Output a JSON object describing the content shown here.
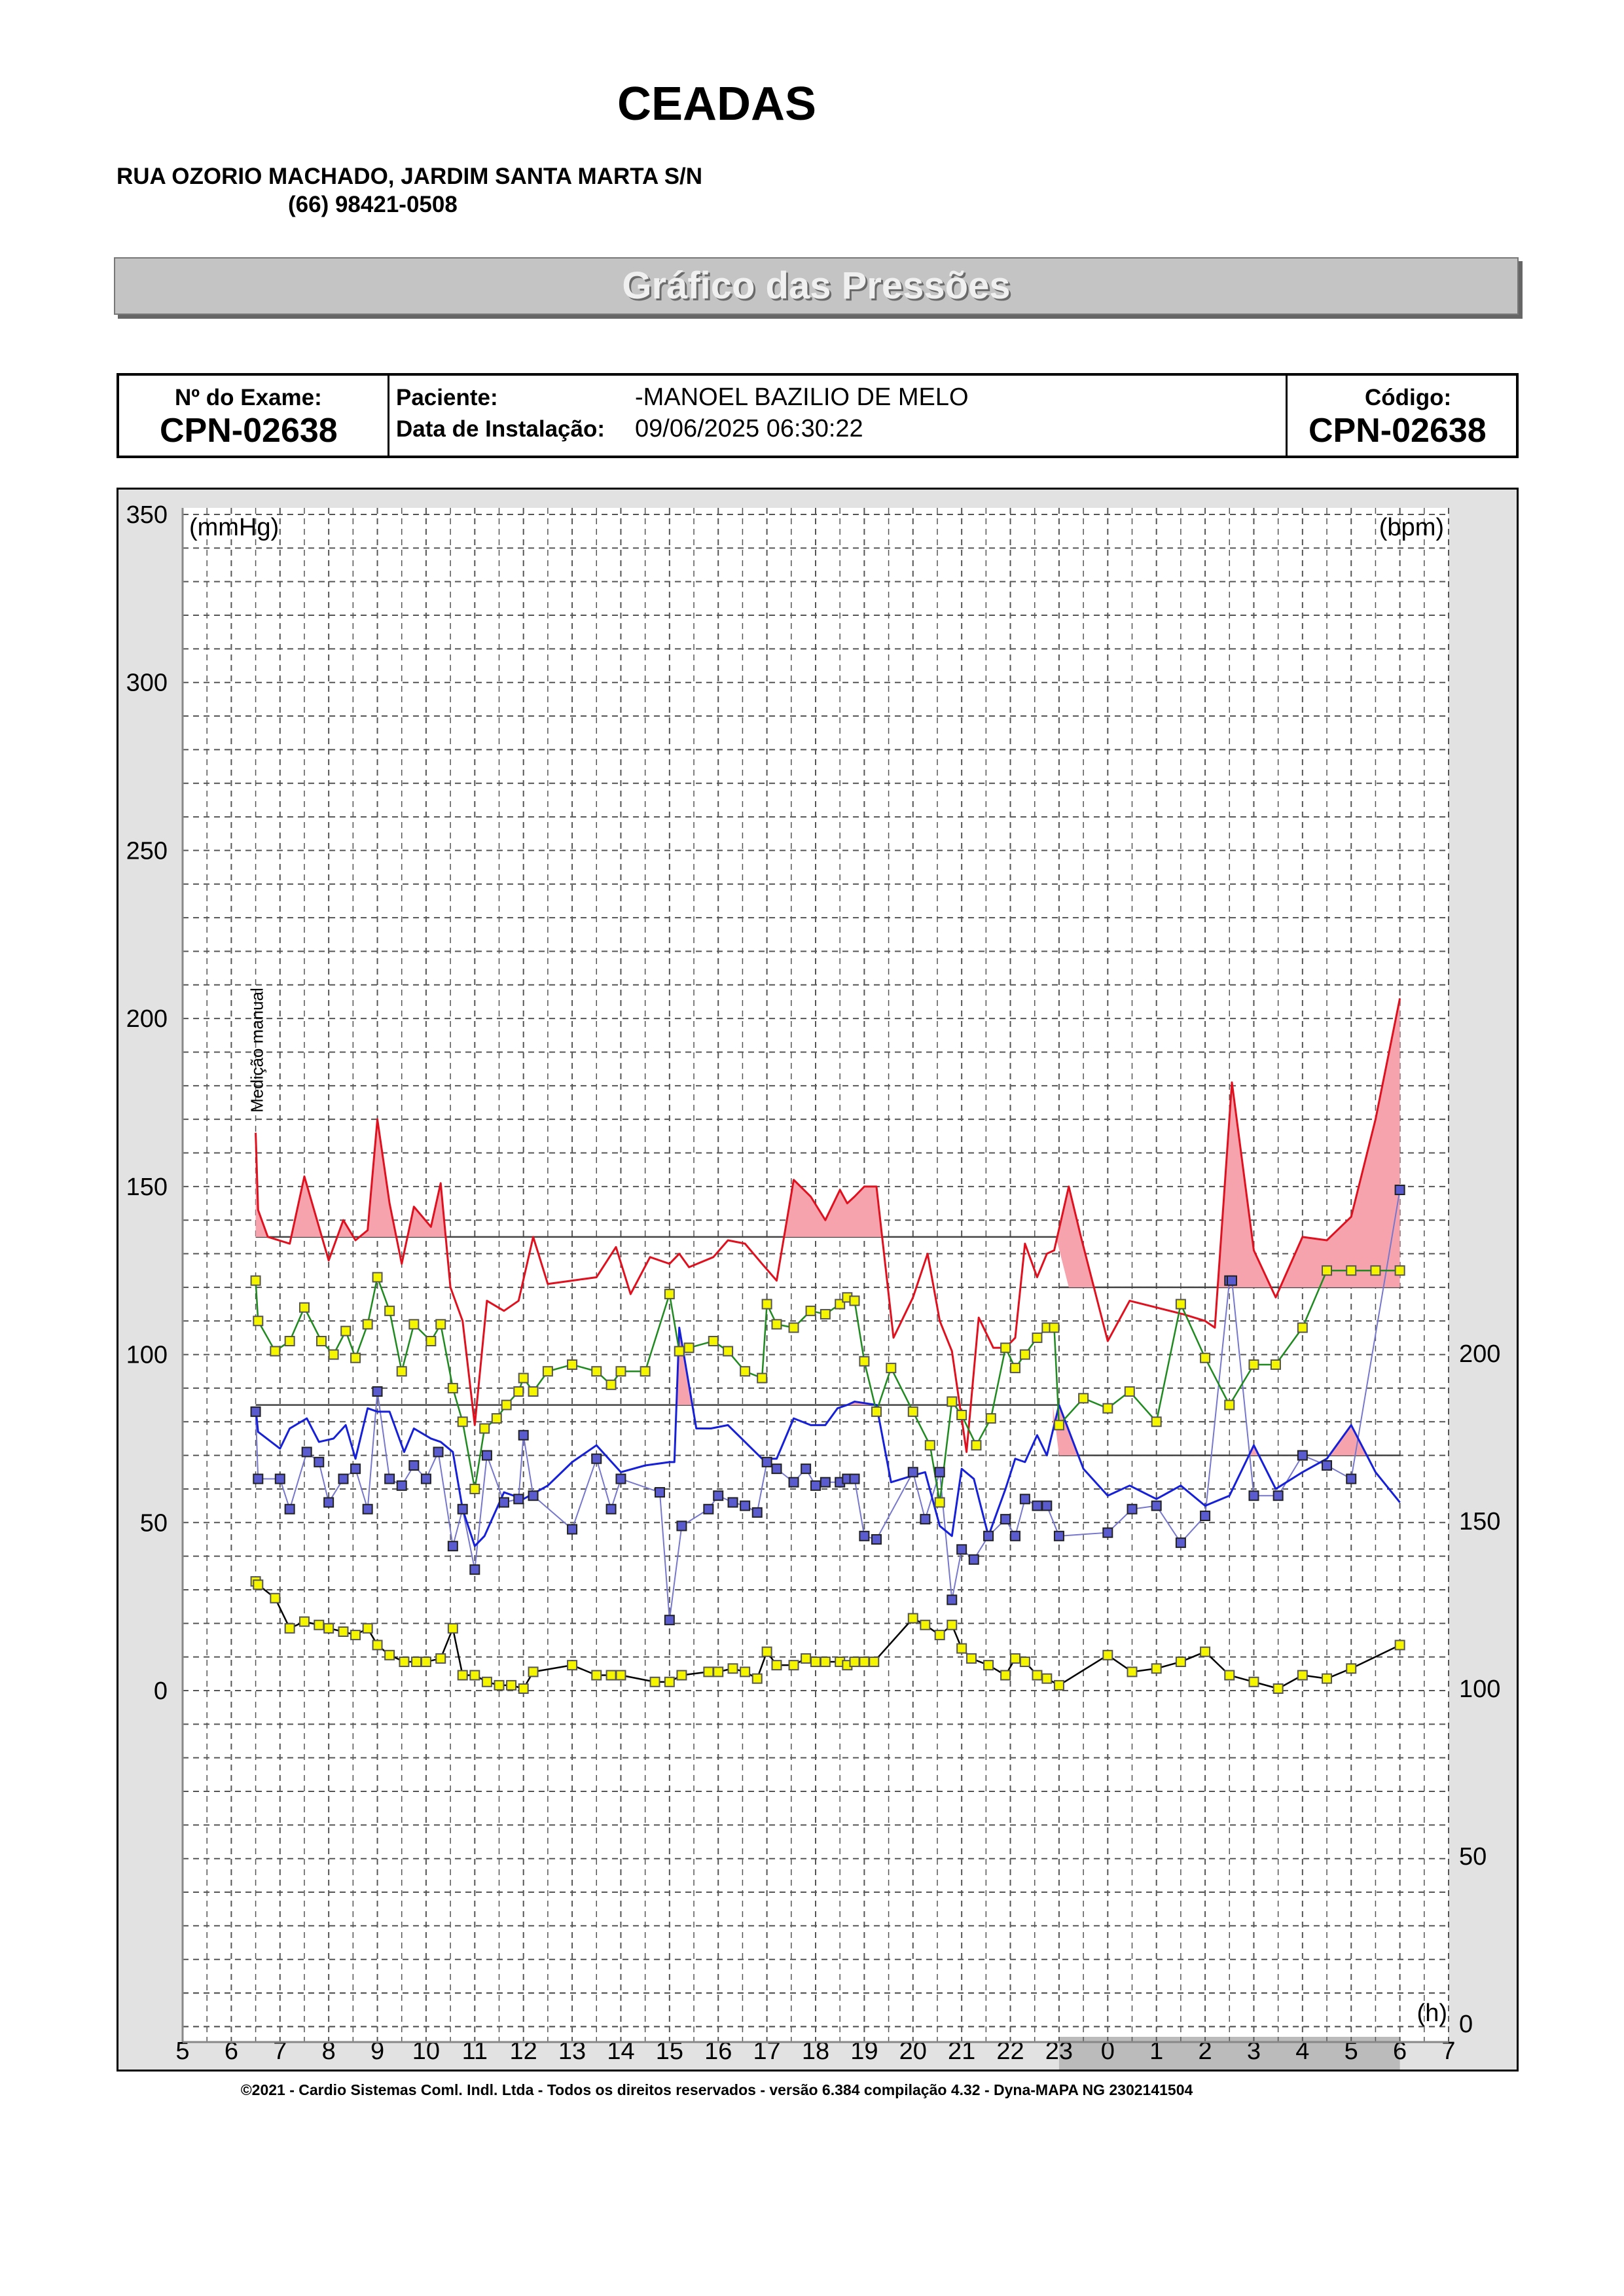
{
  "header": {
    "org_name": "CEADAS",
    "address": "RUA OZORIO MACHADO, JARDIM SANTA MARTA S/N",
    "phone": "(66) 98421-0508",
    "banner_title": "Gráfico das Pressões"
  },
  "info": {
    "exam_label": "Nº do Exame:",
    "exam_value": "CPN-02638",
    "patient_label": "Paciente:",
    "patient_value": "-MANOEL BAZILIO DE  MELO",
    "install_label": "Data de Instalação:",
    "install_value": "09/06/2025 06:30:22",
    "code_label": "Código:",
    "code_value": "CPN-02638"
  },
  "footer": "©2021 - Cardio Sistemas Coml. Indl. Ltda - Todos os direitos reservados - versão 6.384 compilação 4.32 - Dyna-MAPA NG 2302141504",
  "colors": {
    "systolic": "#e0101e",
    "systolic_fill": "#f7a3ae",
    "diastolic": "#1520d8",
    "diastolic_marker": "#7777cc",
    "mean": "#1f8a1f",
    "marker_fill": "#f5f500",
    "heart_rate": "#000000",
    "grid": "#555555",
    "sleep_band": "#bbbbbb"
  },
  "chart_data": {
    "type": "line",
    "left_axis_label": "(mmHg)",
    "right_axis_label": "(bpm)",
    "x_axis_label": "(h)",
    "annotation": "Medição manual",
    "x_ticks": [
      "5",
      "6",
      "7",
      "8",
      "9",
      "10",
      "11",
      "12",
      "13",
      "14",
      "15",
      "16",
      "17",
      "18",
      "19",
      "20",
      "21",
      "22",
      "23",
      "0",
      "1",
      "2",
      "3",
      "4",
      "5",
      "6",
      "7"
    ],
    "x_range_hours": [
      5,
      31
    ],
    "sleep_period_hours": [
      23,
      30
    ],
    "y_left_range": [
      0,
      350
    ],
    "y_left_ticks": [
      0,
      50,
      100,
      150,
      200,
      250,
      300,
      350
    ],
    "y_right_range": [
      0,
      250
    ],
    "y_right_ticks": [
      0,
      50,
      100,
      150,
      200
    ],
    "limits": {
      "systolic_awake": 135,
      "systolic_sleep": 120,
      "diastolic_awake": 85,
      "diastolic_sleep": 70
    },
    "series": [
      {
        "name": "Sistólica",
        "kind": "line",
        "x": [
          6.5,
          6.55,
          6.75,
          7.2,
          7.5,
          8,
          8.3,
          8.55,
          8.8,
          9,
          9.25,
          9.5,
          9.75,
          10.1,
          10.3,
          10.5,
          10.75,
          11,
          11.25,
          11.6,
          11.9,
          12.2,
          12.5,
          13,
          13.5,
          13.9,
          14.2,
          14.6,
          15,
          15.2,
          15.4,
          15.9,
          16.2,
          16.55,
          16.9,
          17.2,
          17.55,
          17.9,
          18.2,
          18.5,
          18.65,
          18.8,
          19,
          19.25,
          19.6,
          20,
          20.3,
          20.55,
          20.8,
          21.1,
          21.35,
          21.65,
          21.9,
          22.1,
          22.3,
          22.55,
          22.75,
          22.9,
          23.2,
          23.45,
          24,
          24.45,
          25,
          25.55,
          26,
          26.2,
          26.55,
          27,
          27.45,
          28,
          28.5,
          29,
          29.5,
          30
        ],
        "values": [
          166,
          143,
          135,
          133,
          153,
          128,
          140,
          134,
          137,
          170,
          145,
          127,
          144,
          138,
          151,
          120,
          110,
          79,
          116,
          113,
          116,
          135,
          121,
          122,
          123,
          132,
          118,
          129,
          127,
          130,
          126,
          129,
          134,
          133,
          127,
          122,
          152,
          147,
          140,
          149,
          145,
          147,
          150,
          150,
          105,
          117,
          130,
          110,
          101,
          71,
          111,
          102,
          102,
          105,
          133,
          123,
          130,
          131,
          150,
          135,
          104,
          116,
          114,
          112,
          110,
          108,
          181,
          131,
          117,
          135,
          134,
          141,
          170,
          206
        ]
      },
      {
        "name": "Média",
        "kind": "line_markers",
        "x": [
          6.5,
          6.55,
          6.9,
          7.2,
          7.5,
          7.85,
          8.1,
          8.35,
          8.55,
          8.8,
          9,
          9.25,
          9.5,
          9.75,
          10.1,
          10.3,
          10.55,
          10.75,
          11,
          11.2,
          11.45,
          11.65,
          11.9,
          12,
          12.2,
          12.5,
          13,
          13.5,
          13.8,
          14,
          14.5,
          15,
          15.2,
          15.4,
          15.9,
          16.2,
          16.55,
          16.9,
          17,
          17.2,
          17.55,
          17.9,
          18.2,
          18.5,
          18.65,
          18.8,
          19,
          19.25,
          19.55,
          20,
          20.35,
          20.55,
          20.8,
          21,
          21.3,
          21.6,
          21.9,
          22.1,
          22.3,
          22.55,
          22.75,
          22.9,
          23,
          23.5,
          24,
          24.45,
          25,
          25.5,
          26,
          26.5,
          27,
          27.45,
          28,
          28.5,
          29,
          29.5,
          30
        ],
        "values": [
          122,
          110,
          101,
          104,
          114,
          104,
          100,
          107,
          99,
          109,
          123,
          113,
          95,
          109,
          104,
          109,
          90,
          80,
          60,
          78,
          81,
          85,
          89,
          93,
          89,
          95,
          97,
          95,
          91,
          95,
          95,
          118,
          101,
          102,
          104,
          101,
          95,
          93,
          115,
          109,
          108,
          113,
          112,
          115,
          117,
          116,
          98,
          83,
          96,
          83,
          73,
          56,
          86,
          82,
          73,
          81,
          102,
          96,
          100,
          105,
          108,
          108,
          79,
          87,
          84,
          89,
          80,
          115,
          99,
          85,
          97,
          97,
          108,
          125,
          125,
          125,
          125
        ]
      },
      {
        "name": "Diastólica",
        "kind": "line",
        "x": [
          6.5,
          6.55,
          7,
          7.2,
          7.55,
          7.8,
          8.1,
          8.35,
          8.55,
          8.8,
          9,
          9.25,
          9.55,
          9.75,
          10.1,
          10.3,
          10.55,
          10.75,
          11,
          11.2,
          11.6,
          12,
          12.5,
          13,
          13.5,
          14,
          14.5,
          15,
          15.1,
          15.2,
          15.55,
          15.85,
          16.2,
          16.55,
          16.9,
          17.2,
          17.55,
          17.9,
          18.2,
          18.45,
          18.65,
          18.8,
          19.25,
          19.55,
          20,
          20.25,
          20.55,
          20.8,
          21,
          21.25,
          21.55,
          21.9,
          22.1,
          22.3,
          22.55,
          22.75,
          23,
          23.5,
          24,
          24.45,
          25,
          25.5,
          26,
          26.5,
          27,
          27.45,
          28,
          28.5,
          29,
          29.5,
          30
        ],
        "values": [
          84,
          77,
          72,
          78,
          81,
          74,
          75,
          79,
          69,
          84,
          83,
          83,
          71,
          78,
          75,
          74,
          71,
          54,
          43,
          46,
          59,
          57,
          61,
          68,
          73,
          65,
          67,
          68,
          68,
          108,
          78,
          78,
          79,
          74,
          69,
          69,
          81,
          79,
          79,
          84,
          85,
          86,
          85,
          62,
          64,
          65,
          49,
          46,
          66,
          63,
          46,
          60,
          69,
          68,
          76,
          70,
          85,
          66,
          58,
          61,
          57,
          61,
          55,
          58,
          73,
          60,
          65,
          69,
          79,
          65,
          56
        ]
      },
      {
        "name": "Diastólica (medições)",
        "kind": "markers",
        "x": [
          6.5,
          6.55,
          7,
          7.2,
          7.55,
          7.8,
          8,
          8.3,
          8.55,
          8.8,
          9,
          9.25,
          9.5,
          9.75,
          10,
          10.25,
          10.55,
          10.75,
          11,
          11.25,
          11.6,
          11.9,
          12,
          12.2,
          13,
          13.5,
          13.8,
          14,
          14.8,
          15,
          15.25,
          15.8,
          16,
          16.3,
          16.55,
          16.8,
          17,
          17.2,
          17.55,
          17.8,
          18,
          18.2,
          18.5,
          18.65,
          18.8,
          19,
          19.25,
          20,
          20.25,
          20.55,
          20.8,
          21,
          21.25,
          21.55,
          21.9,
          22.1,
          22.3,
          22.55,
          22.75,
          23,
          24,
          24.5,
          25,
          25.5,
          26,
          26.5,
          26.55,
          27,
          27.5,
          28,
          28.5,
          29,
          30
        ],
        "values": [
          83,
          63,
          63,
          54,
          71,
          68,
          56,
          63,
          66,
          54,
          89,
          63,
          61,
          67,
          63,
          71,
          43,
          54,
          36,
          70,
          56,
          57,
          76,
          58,
          48,
          69,
          54,
          63,
          59,
          21,
          49,
          54,
          58,
          56,
          55,
          53,
          68,
          66,
          62,
          66,
          61,
          62,
          62,
          63,
          63,
          46,
          45,
          65,
          51,
          65,
          27,
          42,
          39,
          46,
          51,
          46,
          57,
          55,
          55,
          46,
          47,
          54,
          55,
          44,
          52,
          122,
          122,
          58,
          58,
          70,
          67,
          63,
          149
        ]
      },
      {
        "name": "Frequência cardíaca",
        "kind": "line_markers",
        "axis": "right",
        "x": [
          6.5,
          6.55,
          6.9,
          7.2,
          7.5,
          7.8,
          8,
          8.3,
          8.55,
          8.8,
          9,
          9.25,
          9.55,
          9.8,
          10,
          10.3,
          10.55,
          10.75,
          11,
          11.25,
          11.5,
          11.75,
          12,
          12.2,
          13,
          13.5,
          13.8,
          14,
          14.7,
          15,
          15.25,
          15.8,
          16,
          16.3,
          16.55,
          16.8,
          17,
          17.2,
          17.55,
          17.8,
          18,
          18.2,
          18.5,
          18.65,
          18.8,
          19,
          19.2,
          20,
          20.25,
          20.55,
          20.8,
          21,
          21.2,
          21.55,
          21.9,
          22.1,
          22.3,
          22.55,
          22.75,
          23,
          24,
          24.5,
          25,
          25.5,
          26,
          26.5,
          27,
          27.5,
          28,
          28.5,
          29,
          30
        ],
        "values": [
          132,
          131,
          127,
          118,
          120,
          119,
          118,
          117,
          116,
          118,
          113,
          110,
          108,
          108,
          108,
          109,
          118,
          104,
          104,
          102,
          101,
          101,
          100,
          105,
          107,
          104,
          104,
          104,
          102,
          102,
          104,
          105,
          105,
          106,
          105,
          103,
          111,
          107,
          107,
          109,
          108,
          108,
          108,
          107,
          108,
          108,
          108,
          121,
          119,
          116,
          119,
          112,
          109,
          107,
          104,
          109,
          108,
          104,
          103,
          101,
          110,
          105,
          106,
          108,
          111,
          104,
          102,
          100,
          104,
          103,
          106,
          113
        ]
      }
    ]
  }
}
